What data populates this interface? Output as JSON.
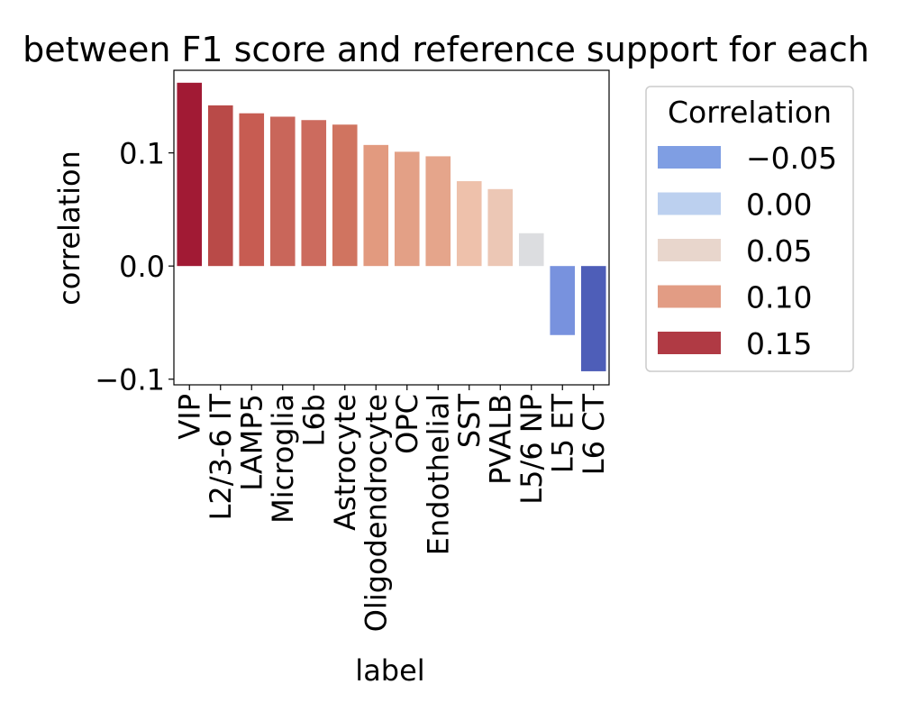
{
  "chart_data": {
    "type": "bar",
    "title": "between F1 score and reference support for each",
    "xlabel": "label",
    "ylabel": "correlation",
    "categories": [
      "VIP",
      "L2/3-6 IT",
      "LAMP5",
      "Microglia",
      "L6b",
      "Astrocyte",
      "Oligodendrocyte",
      "OPC",
      "Endothelial",
      "SST",
      "PVALB",
      "L5/6 NP",
      "L5 ET",
      "L6 CT"
    ],
    "values": [
      0.162,
      0.142,
      0.135,
      0.132,
      0.129,
      0.125,
      0.107,
      0.101,
      0.097,
      0.075,
      0.068,
      0.029,
      -0.061,
      -0.093
    ],
    "bar_colors": [
      "#a11a34",
      "#b94a48",
      "#c75c52",
      "#c9665a",
      "#cc6b5e",
      "#d07460",
      "#e29a7f",
      "#e3a086",
      "#e5a58b",
      "#eec1ab",
      "#ecc7b5",
      "#dcdde0",
      "#7892de",
      "#4e5eb8"
    ],
    "ylim": [
      -0.105,
      0.173
    ],
    "yticks": [
      {
        "value": -0.1,
        "label": "−0.1"
      },
      {
        "value": 0.0,
        "label": "0.0"
      },
      {
        "value": 0.1,
        "label": "0.1"
      }
    ],
    "grid": false,
    "legend": {
      "title": "Correlation",
      "placement": "outside-right",
      "entries": [
        {
          "label": "−0.05",
          "color": "#7f9ee3"
        },
        {
          "label": "0.00",
          "color": "#bcd0ef"
        },
        {
          "label": "0.05",
          "color": "#e8d6cc"
        },
        {
          "label": "0.10",
          "color": "#e29c84"
        },
        {
          "label": "0.15",
          "color": "#b03a44"
        }
      ]
    }
  }
}
